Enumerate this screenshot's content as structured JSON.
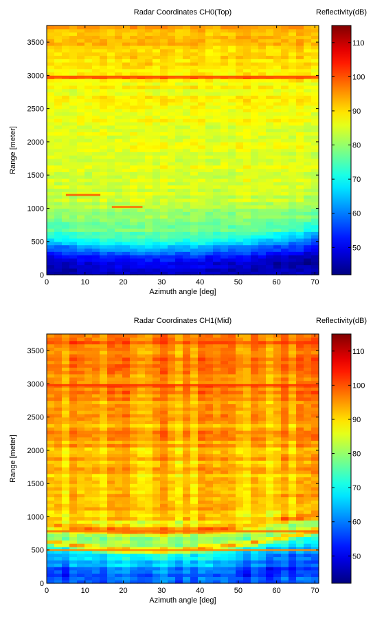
{
  "chart_data": [
    {
      "type": "heatmap",
      "title": "Radar Coordinates CH0(Top)",
      "xlabel": "Azimuth angle [deg]",
      "ylabel": "Range [meter]",
      "xlim": [
        0,
        71
      ],
      "ylim": [
        0,
        3750
      ],
      "xticks": [
        0,
        10,
        20,
        30,
        40,
        50,
        60,
        70
      ],
      "yticks": [
        0,
        500,
        1000,
        1500,
        2000,
        2500,
        3000,
        3500
      ],
      "colorbar": {
        "label": "Reflectivity(dB)",
        "range": [
          42,
          115
        ],
        "ticks": [
          50,
          60,
          70,
          80,
          90,
          100,
          110
        ]
      },
      "profile": {
        "range_m": [
          0,
          200,
          350,
          450,
          550,
          700,
          850,
          1000,
          1200,
          1500,
          2000,
          2500,
          2950,
          2980,
          3010,
          3100,
          3500,
          3750
        ],
        "dB": [
          45,
          52,
          60,
          68,
          74,
          78,
          80,
          82,
          85,
          85,
          86,
          87,
          88,
          100,
          88,
          90,
          92,
          94
        ]
      },
      "features": [
        {
          "range_m": 2980,
          "dB": 100,
          "label": "strong horizontal return"
        },
        {
          "range_m": 1200,
          "azimuth_deg": [
            5,
            14
          ],
          "dB": 100
        },
        {
          "range_m": 1020,
          "azimuth_deg": [
            17,
            25
          ],
          "dB": 98
        }
      ]
    },
    {
      "type": "heatmap",
      "title": "Radar Coordinates CH1(Mid)",
      "xlabel": "Azimuth angle [deg]",
      "ylabel": "Range [meter]",
      "xlim": [
        0,
        71
      ],
      "ylim": [
        0,
        3750
      ],
      "xticks": [
        0,
        10,
        20,
        30,
        40,
        50,
        60,
        70
      ],
      "yticks": [
        0,
        500,
        1000,
        1500,
        2000,
        2500,
        3000,
        3500
      ],
      "colorbar": {
        "label": "Reflectivity(dB)",
        "range": [
          42,
          115
        ],
        "ticks": [
          50,
          60,
          70,
          80,
          90,
          100,
          110
        ]
      },
      "profile": {
        "range_m": [
          0,
          150,
          300,
          420,
          500,
          560,
          700,
          780,
          900,
          1100,
          1500,
          2000,
          2500,
          2950,
          2980,
          3010,
          3500,
          3750
        ],
        "dB": [
          55,
          60,
          66,
          72,
          95,
          80,
          82,
          96,
          88,
          93,
          92,
          93,
          94,
          96,
          102,
          96,
          97,
          98
        ]
      },
      "features": [
        {
          "range_m": 2980,
          "dB": 102,
          "label": "strong horizontal return"
        },
        {
          "range_m": 780,
          "dB": 98,
          "label": "curved return"
        },
        {
          "range_m": 500,
          "dB": 96,
          "label": "curved return"
        }
      ]
    }
  ]
}
